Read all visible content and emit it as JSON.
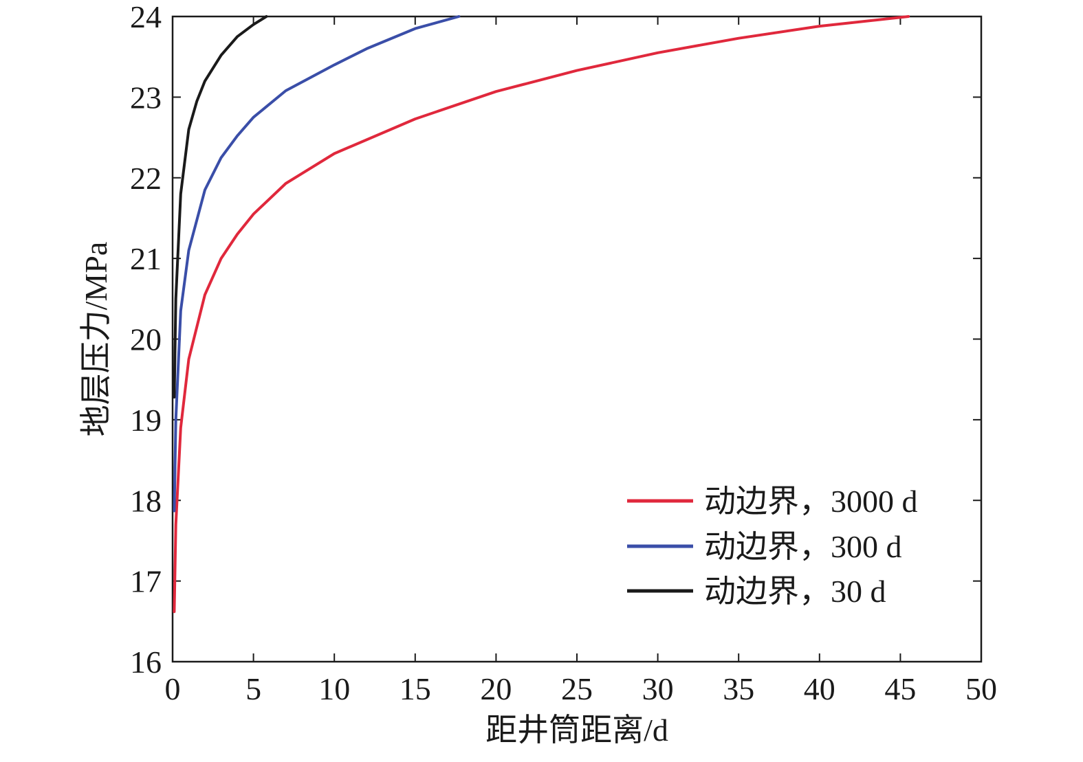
{
  "chart_data": {
    "type": "line",
    "xlabel": "距井筒距离/d",
    "ylabel": "地层压力/MPa",
    "xlim": [
      0,
      50
    ],
    "ylim": [
      16,
      24
    ],
    "xticks": [
      0,
      5,
      10,
      15,
      20,
      25,
      30,
      35,
      40,
      45,
      50
    ],
    "yticks": [
      16,
      17,
      18,
      19,
      20,
      21,
      22,
      23,
      24
    ],
    "xtick_labels": [
      "0",
      "5",
      "10",
      "15",
      "20",
      "25",
      "30",
      "35",
      "40",
      "45",
      "50"
    ],
    "ytick_labels": [
      "16",
      "17",
      "18",
      "19",
      "20",
      "21",
      "22",
      "23",
      "24"
    ],
    "grid": false,
    "legend_position": "bottom-right",
    "series": [
      {
        "name": "动边界，3000 d",
        "color": "#e0283c",
        "x": [
          0.1,
          0.2,
          0.5,
          1,
          2,
          3,
          4,
          5,
          7,
          10,
          15,
          20,
          25,
          30,
          35,
          40,
          45.5
        ],
        "y": [
          16.62,
          17.7,
          18.9,
          19.75,
          20.55,
          21.0,
          21.3,
          21.55,
          21.93,
          22.3,
          22.73,
          23.07,
          23.33,
          23.55,
          23.73,
          23.88,
          24.0
        ]
      },
      {
        "name": "动边界，300 d",
        "color": "#3a4ea8",
        "x": [
          0.1,
          0.2,
          0.5,
          1,
          2,
          3,
          4,
          5,
          7,
          10,
          12,
          15,
          17.7
        ],
        "y": [
          17.87,
          19.0,
          20.35,
          21.1,
          21.85,
          22.25,
          22.52,
          22.75,
          23.08,
          23.4,
          23.6,
          23.85,
          24.0
        ]
      },
      {
        "name": "动边界，30 d",
        "color": "#1a1a1a",
        "x": [
          0.1,
          0.2,
          0.5,
          1,
          1.5,
          2,
          3,
          4,
          5,
          5.8
        ],
        "y": [
          19.28,
          20.5,
          21.8,
          22.6,
          22.95,
          23.2,
          23.52,
          23.75,
          23.9,
          24.0
        ]
      }
    ]
  }
}
